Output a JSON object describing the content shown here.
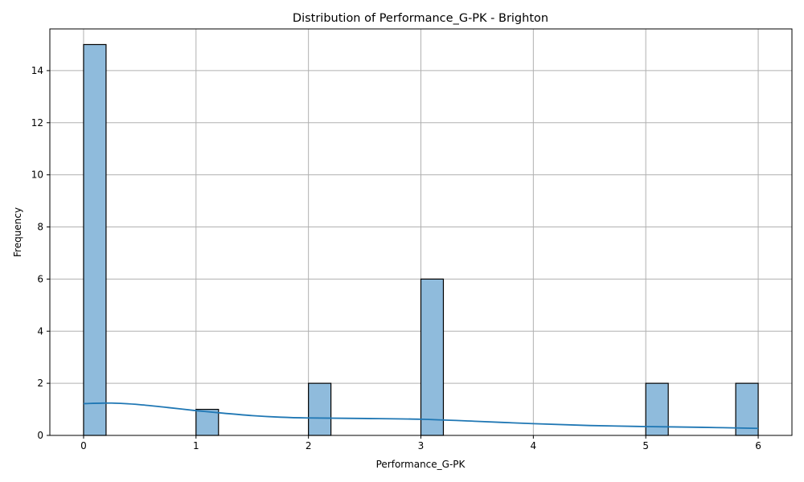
{
  "chart_data": {
    "type": "bar",
    "title": "Distribution of Performance_G-PK - Brighton",
    "xlabel": "Performance_G-PK",
    "ylabel": "Frequency",
    "xlim": [
      -0.3,
      6.3
    ],
    "ylim": [
      0,
      15.6
    ],
    "xticks": [
      0,
      1,
      2,
      3,
      4,
      5,
      6
    ],
    "yticks": [
      0,
      2,
      4,
      6,
      8,
      10,
      12,
      14
    ],
    "grid": true,
    "bin_width": 0.2,
    "bars": [
      {
        "x0": 0.0,
        "x1": 0.2,
        "count": 15
      },
      {
        "x0": 1.0,
        "x1": 1.2,
        "count": 1
      },
      {
        "x0": 2.0,
        "x1": 2.2,
        "count": 2
      },
      {
        "x0": 3.0,
        "x1": 3.2,
        "count": 6
      },
      {
        "x0": 5.0,
        "x1": 5.2,
        "count": 2
      },
      {
        "x0": 5.8,
        "x1": 6.0,
        "count": 2
      }
    ],
    "kde": {
      "x": [
        0,
        0.25,
        0.5,
        0.75,
        1.0,
        1.25,
        1.5,
        1.75,
        2.0,
        2.5,
        3.0,
        3.5,
        4.0,
        4.5,
        5.0,
        5.5,
        6.0
      ],
      "y": [
        1.22,
        1.24,
        1.18,
        1.07,
        0.95,
        0.85,
        0.76,
        0.7,
        0.67,
        0.65,
        0.62,
        0.54,
        0.45,
        0.38,
        0.34,
        0.31,
        0.27
      ]
    },
    "colors": {
      "bar_fill": "#8fbbdc",
      "bar_edge": "#000000",
      "kde_line": "#1f77b4",
      "grid": "#b0b0b0"
    }
  }
}
